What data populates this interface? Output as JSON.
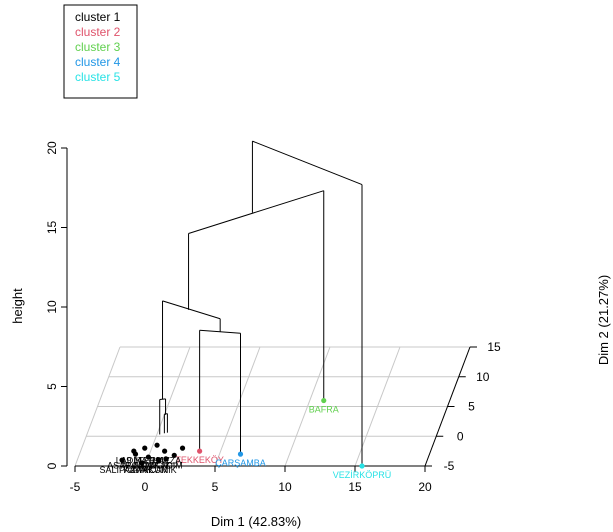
{
  "chart_data": {
    "type": "3d-dendrogram",
    "xlabel": "Dim 1 (42.83%)",
    "ylabel": "Dim 2 (21.27%)",
    "zlabel": "height",
    "x_ticks": [
      -5,
      0,
      5,
      10,
      15,
      20
    ],
    "y_ticks": [
      -5,
      0,
      5,
      10,
      15
    ],
    "z_ticks": [
      0,
      5,
      10,
      15,
      20
    ],
    "xlim": [
      -5,
      20
    ],
    "ylim": [
      -5,
      15
    ],
    "zlim": [
      0,
      20
    ],
    "legend": {
      "position": "top-left",
      "entries": [
        {
          "label": "cluster 1",
          "color": "#000000"
        },
        {
          "label": "cluster 2",
          "color": "#DF536B"
        },
        {
          "label": "cluster 3",
          "color": "#61D04F"
        },
        {
          "label": "cluster 4",
          "color": "#2297E6"
        },
        {
          "label": "cluster 5",
          "color": "#28E2E5"
        }
      ]
    },
    "points": [
      {
        "label": "TEKKEKÖY",
        "cluster": 2,
        "x": 3.5,
        "y": -2.5
      },
      {
        "label": "BAFRA",
        "cluster": 3,
        "x": 11,
        "y": 6
      },
      {
        "label": "ÇARŞAMBA",
        "cluster": 4,
        "x": 6.5,
        "y": -3
      },
      {
        "label": "VEZİRKÖPRÜ",
        "cluster": 5,
        "x": 15.5,
        "y": -5
      },
      {
        "label": "",
        "cluster": 1,
        "x": -1,
        "y": -3
      },
      {
        "label": "",
        "cluster": 1,
        "x": 0,
        "y": -3.5
      },
      {
        "label": "",
        "cluster": 1,
        "x": 1,
        "y": -2.5
      },
      {
        "label": "",
        "cluster": 1,
        "x": -0.5,
        "y": -2
      },
      {
        "label": "",
        "cluster": 1,
        "x": 0.8,
        "y": -4
      },
      {
        "label": "",
        "cluster": 1,
        "x": 1.8,
        "y": -3.2
      },
      {
        "label": "",
        "cluster": 1,
        "x": -1.8,
        "y": -4
      },
      {
        "label": "",
        "cluster": 1,
        "x": 0.3,
        "y": -1.5
      },
      {
        "label": "",
        "cluster": 1,
        "x": 2.2,
        "y": -2
      },
      {
        "label": "",
        "cluster": 1,
        "x": -0.3,
        "y": -4.5
      },
      {
        "label": "",
        "cluster": 1,
        "x": 1.3,
        "y": -3.8
      },
      {
        "label": "",
        "cluster": 1,
        "x": -1.2,
        "y": -2.5
      }
    ],
    "cluster1_labels": [
      "SALIPAZARI",
      "KAVAK",
      "ATAKUM",
      "CANIK",
      "ASARCIK",
      "ALACAM",
      "AYVACIK",
      "ILKADIM",
      "LADIK",
      "19 MAYIS",
      "TERME",
      "HAVZA"
    ],
    "merges": [
      {
        "children": [
          [
            0.5,
            0.5
          ],
          [
            0.7,
            0.6
          ]
        ],
        "height": 1.2
      },
      {
        "children": [
          [
            0.2,
            0.3
          ],
          [
            0.6,
            0.4
          ]
        ],
        "height": 2.2
      },
      {
        "children": [
          [
            3.5,
            -2.5
          ],
          [
            6.5,
            -3
          ]
        ],
        "height": 7.6
      },
      {
        "children": [
          [
            0.4,
            0.3
          ],
          [
            5.0,
            -2.7
          ]
        ],
        "height": 8.4
      },
      {
        "children": [
          [
            2.5,
            -1.2
          ],
          [
            11,
            6
          ]
        ],
        "height": 13.2
      },
      {
        "children": [
          [
            6.5,
            2.3
          ],
          [
            15.5,
            -5
          ]
        ],
        "height": 17.7
      }
    ]
  }
}
